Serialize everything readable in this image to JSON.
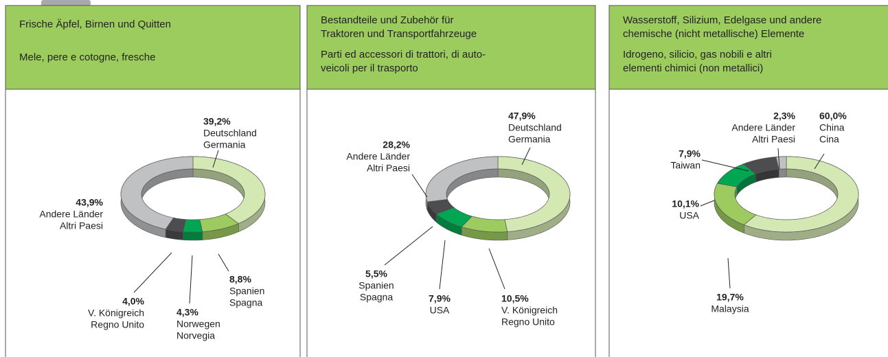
{
  "chart_data": [
    {
      "type": "pie",
      "donut": true,
      "title": [
        "Frische Äpfel, Birnen und Quitten"
      ],
      "subtitle": [
        "Mele, pere e cotogne, fresche"
      ],
      "categories": [
        [
          "Deutschland",
          "Germania"
        ],
        [
          "Spanien",
          "Spagna"
        ],
        [
          "Norwegen",
          "Norvegia"
        ],
        [
          "V. Königreich",
          "Regno Unito"
        ],
        [
          "Andere Länder",
          "Altri Paesi"
        ]
      ],
      "values": [
        39.2,
        8.8,
        4.3,
        4.0,
        43.9
      ],
      "value_labels": [
        "39,2%",
        "8,8%",
        "4,3%",
        "4,0%",
        "43,9%"
      ],
      "colors": [
        "#d4e8b4",
        "#9dcb5f",
        "#00a651",
        "#4d4d4f",
        "#c0c1c3"
      ]
    },
    {
      "type": "pie",
      "donut": true,
      "title": [
        "Bestandteile und Zubehör für",
        "Traktoren und Transportfahrzeuge"
      ],
      "subtitle": [
        "Parti ed accessori di trattori, di auto-",
        "veicoli per il trasporto"
      ],
      "categories": [
        [
          "Deutschland",
          "Germania"
        ],
        [
          "V. Königreich",
          "Regno Unito"
        ],
        [
          "USA"
        ],
        [
          "Spanien",
          "Spagna"
        ],
        [
          "Andere Länder",
          "Altri Paesi"
        ]
      ],
      "values": [
        47.9,
        10.5,
        7.9,
        5.5,
        28.2
      ],
      "value_labels": [
        "47,9%",
        "10,5%",
        "7,9%",
        "5,5%",
        "28,2%"
      ],
      "colors": [
        "#d4e8b4",
        "#9dcb5f",
        "#00a651",
        "#4d4d4f",
        "#c0c1c3"
      ]
    },
    {
      "type": "pie",
      "donut": true,
      "title": [
        "Wasserstoff, Silizium, Edelgase und andere",
        "chemische (nicht metallische) Elemente"
      ],
      "subtitle": [
        "Idrogeno, silicio, gas nobili e altri",
        "elementi chimici (non metallici)"
      ],
      "categories": [
        [
          "China",
          "Cina"
        ],
        [
          "Malaysia"
        ],
        [
          "USA"
        ],
        [
          "Taiwan"
        ],
        [
          "Andere Länder",
          "Altri Paesi"
        ]
      ],
      "values": [
        60.0,
        19.7,
        10.1,
        7.9,
        2.3
      ],
      "value_labels": [
        "60,0%",
        "19,7%",
        "10,1%",
        "7,9%",
        "2,3%"
      ],
      "colors": [
        "#d4e8b4",
        "#9dcb5f",
        "#00a651",
        "#4d4d4f",
        "#c0c1c3"
      ]
    }
  ]
}
